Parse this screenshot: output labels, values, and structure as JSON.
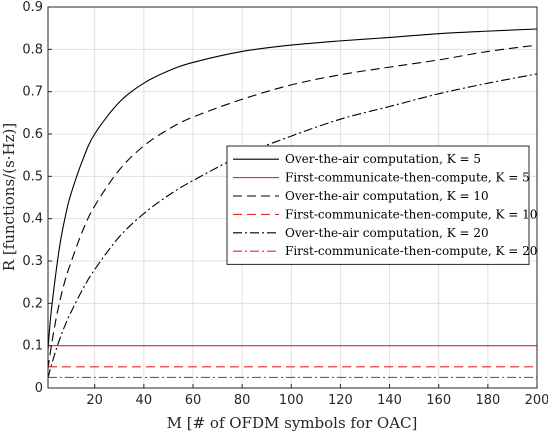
{
  "chart_data": {
    "type": "line",
    "title": "",
    "xlabel": "M [# of OFDM symbols for OAC]",
    "ylabel": "R [functions/(s·Hz)]",
    "xlim": [
      1,
      200
    ],
    "ylim": [
      0,
      0.9
    ],
    "xticks": [
      20,
      40,
      60,
      80,
      100,
      120,
      140,
      160,
      180,
      200
    ],
    "yticks": [
      0,
      0.1,
      0.2,
      0.3,
      0.4,
      0.5,
      0.6,
      0.7,
      0.8,
      0.9
    ],
    "grid": true,
    "legend_position": "center-right",
    "series": [
      {
        "name": "Over-the-air computation, K = 5",
        "color": "#000000",
        "dash": "solid",
        "x": [
          1,
          2,
          4,
          6,
          8,
          10,
          15,
          20,
          30,
          40,
          50,
          60,
          80,
          100,
          120,
          140,
          160,
          180,
          200
        ],
        "y": [
          0.089,
          0.163,
          0.262,
          0.344,
          0.404,
          0.452,
          0.537,
          0.6,
          0.675,
          0.72,
          0.749,
          0.769,
          0.795,
          0.81,
          0.82,
          0.828,
          0.837,
          0.843,
          0.848
        ]
      },
      {
        "name": "First-communicate-then-compute, K = 5",
        "color": "#e8292b",
        "dash": "solid",
        "x": [
          1,
          200
        ],
        "y": [
          0.1,
          0.1
        ]
      },
      {
        "name": "Over-the-air computation, K = 10",
        "color": "#000000",
        "dash": "dashed",
        "x": [
          1,
          2,
          4,
          6,
          8,
          10,
          15,
          20,
          30,
          40,
          50,
          60,
          80,
          100,
          120,
          140,
          160,
          180,
          200
        ],
        "y": [
          0.045,
          0.086,
          0.155,
          0.21,
          0.255,
          0.291,
          0.37,
          0.43,
          0.515,
          0.572,
          0.611,
          0.64,
          0.682,
          0.716,
          0.74,
          0.758,
          0.775,
          0.795,
          0.81
        ]
      },
      {
        "name": "First-communicate-then-compute, K = 10",
        "color": "#e8292b",
        "dash": "dashed",
        "x": [
          1,
          200
        ],
        "y": [
          0.05,
          0.05
        ]
      },
      {
        "name": "Over-the-air computation, K = 20",
        "color": "#000000",
        "dash": "dashdot",
        "x": [
          1,
          2,
          4,
          6,
          8,
          10,
          15,
          20,
          30,
          40,
          50,
          60,
          80,
          100,
          120,
          140,
          160,
          180,
          200
        ],
        "y": [
          0.024,
          0.046,
          0.085,
          0.119,
          0.149,
          0.175,
          0.232,
          0.28,
          0.357,
          0.412,
          0.455,
          0.49,
          0.55,
          0.595,
          0.635,
          0.665,
          0.695,
          0.72,
          0.742
        ]
      },
      {
        "name": "First-communicate-then-compute, K = 20",
        "color": "#e8292b",
        "dash": "dashdot",
        "x": [
          1,
          200
        ],
        "y": [
          0.025,
          0.025
        ]
      }
    ]
  }
}
